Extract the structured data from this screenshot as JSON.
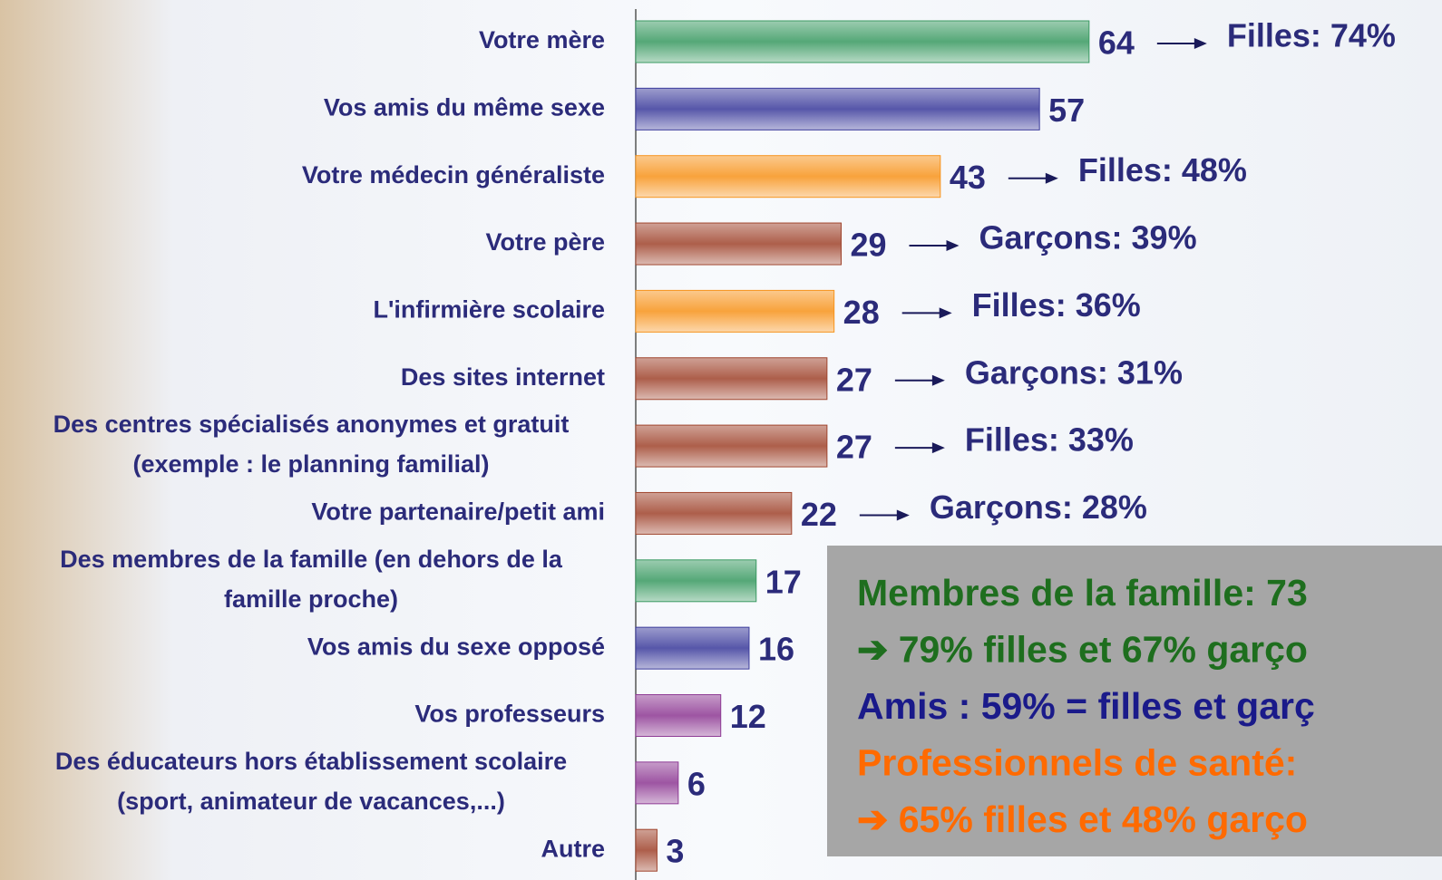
{
  "chart_data": {
    "type": "bar",
    "orientation": "horizontal",
    "categories": [
      [
        "Votre mère"
      ],
      [
        "Vos amis du même sexe"
      ],
      [
        "Votre médecin généraliste"
      ],
      [
        "Votre père"
      ],
      [
        "L'infirmière scolaire"
      ],
      [
        "Des sites internet"
      ],
      [
        "Des centres spécialisés anonymes et gratuit",
        "(exemple : le planning familial)"
      ],
      [
        "Votre partenaire/petit ami"
      ],
      [
        "Des membres de la famille (en dehors de la",
        "famille proche)"
      ],
      [
        "Vos amis du sexe opposé"
      ],
      [
        "Vos professeurs"
      ],
      [
        "Des éducateurs hors établissement scolaire",
        "(sport, animateur de vacances,...)"
      ],
      [
        "Autre"
      ]
    ],
    "values": [
      64,
      57,
      43,
      29,
      28,
      27,
      27,
      22,
      17,
      16,
      12,
      6,
      3
    ],
    "colors": [
      "#3a9a62",
      "#3c3c9c",
      "#f7941d",
      "#a0452e",
      "#f7941d",
      "#a0452e",
      "#a0452e",
      "#a0452e",
      "#3a9a62",
      "#3c3c9c",
      "#8e3a94",
      "#8e3a94",
      "#a0452e"
    ],
    "annotations": [
      "Filles: 74%",
      null,
      "Filles: 48%",
      "Garçons: 39%",
      "Filles: 36%",
      "Garçons: 31%",
      "Filles: 33%",
      "Garçons: 28%",
      null,
      null,
      null,
      null,
      null
    ],
    "summary": [
      {
        "text": "Membres de la famille: 73",
        "color": "#1e6e1e"
      },
      {
        "text": "➔ 79% filles et 67% garço",
        "color": "#1e6e1e"
      },
      {
        "text": "Amis : 59% = filles et garç",
        "color": "#1a1a8a"
      },
      {
        "text": "Professionnels de santé:",
        "color": "#ff6a00"
      },
      {
        "text": "➔ 65% filles et 48% garço",
        "color": "#ff6a00"
      }
    ]
  }
}
